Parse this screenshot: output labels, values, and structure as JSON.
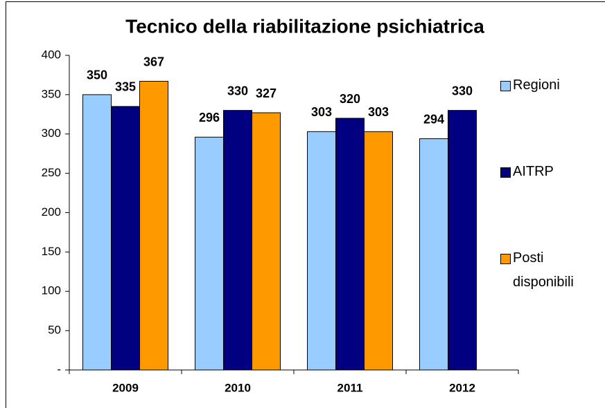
{
  "chart_data": {
    "type": "bar",
    "title": "Tecnico della riabilitazione psichiatrica",
    "categories": [
      "2009",
      "2010",
      "2011",
      "2012"
    ],
    "series": [
      {
        "name": "Regioni",
        "color": "#99ccff",
        "values": [
          350,
          296,
          303,
          294
        ]
      },
      {
        "name": "AITRP",
        "color": "#000080",
        "values": [
          335,
          330,
          320,
          330
        ]
      },
      {
        "name": "Posti disponibili",
        "color": "#ff9900",
        "values": [
          367,
          327,
          303,
          null
        ]
      }
    ],
    "ylim": [
      0,
      400
    ],
    "yticks": [
      {
        "value": 0,
        "label": "-"
      },
      50,
      100,
      150,
      200,
      250,
      300,
      350,
      400
    ],
    "legend": "right"
  }
}
